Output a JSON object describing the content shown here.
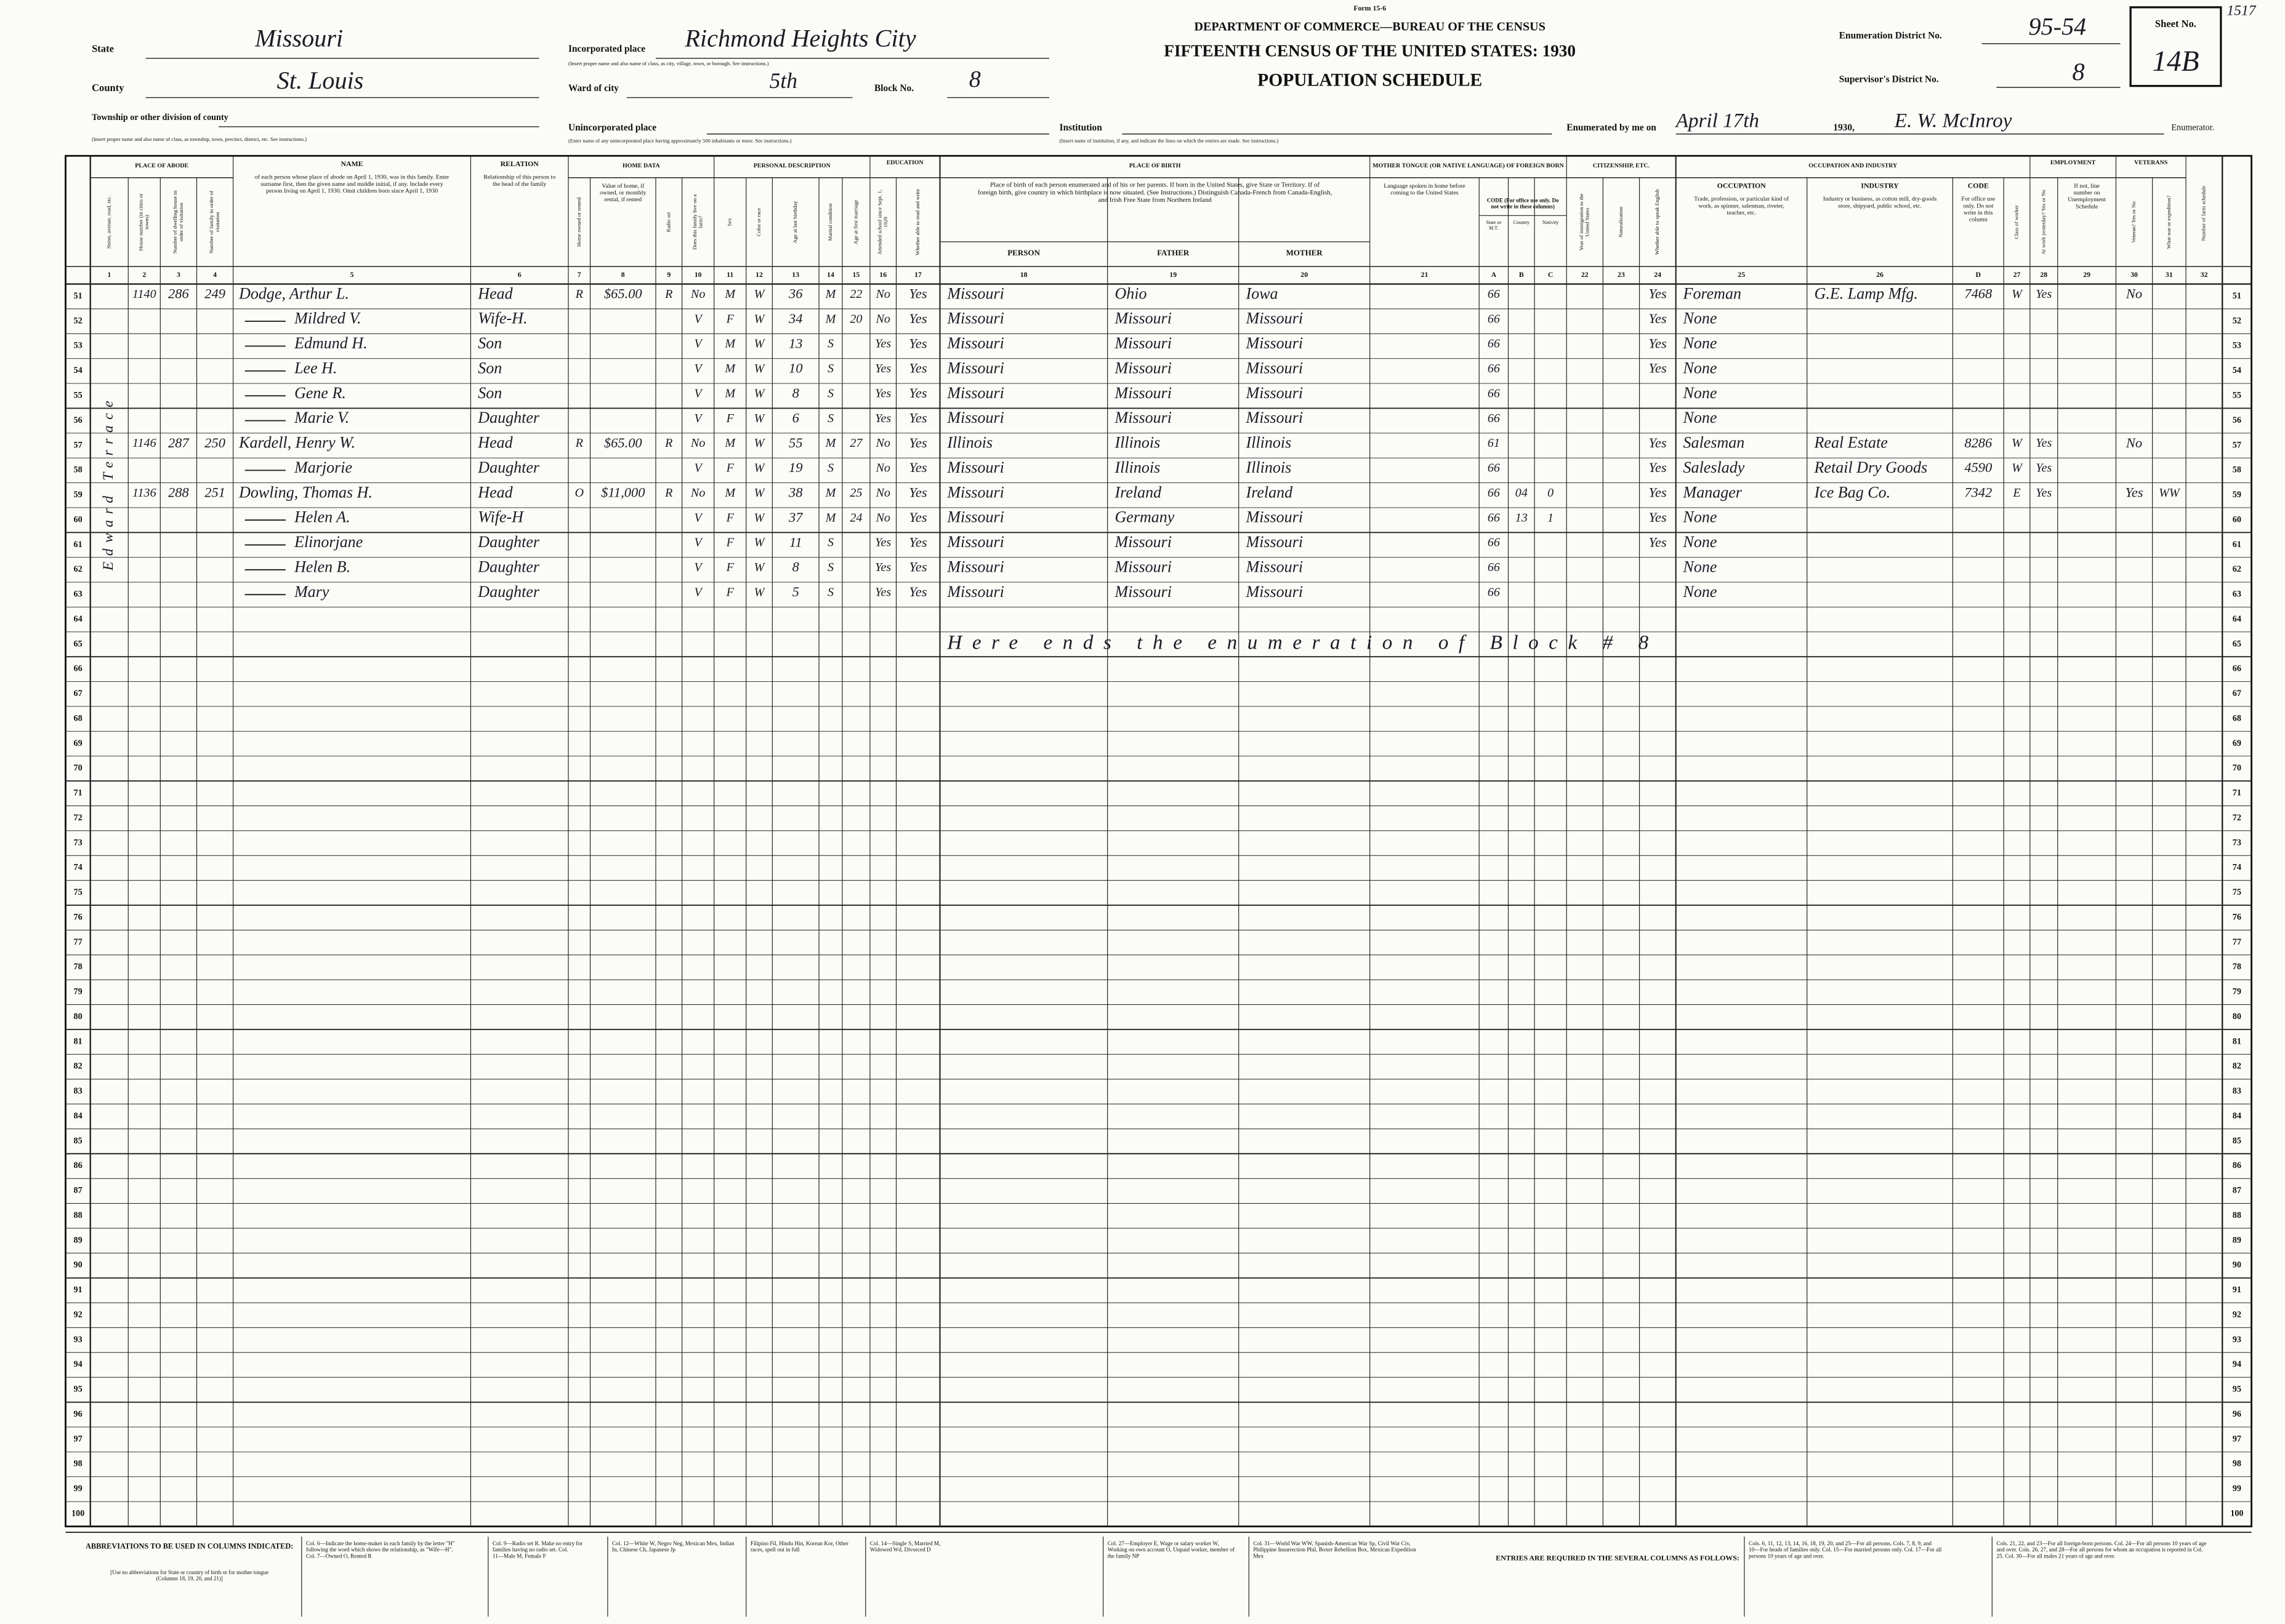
{
  "header": {
    "form": "Form 15-6",
    "dept": "DEPARTMENT OF COMMERCE—BUREAU OF THE CENSUS",
    "title": "FIFTEENTH CENSUS OF THE UNITED STATES: 1930",
    "subtitle": "POPULATION SCHEDULE",
    "state_label": "State",
    "state": "Missouri",
    "county_label": "County",
    "county": "St. Louis",
    "township_label": "Township or other division of county",
    "township_instruction": "(Insert proper name and also name of class, as township, town, precinct, district, etc. See instructions.)",
    "place_label": "Incorporated place",
    "place": "Richmond Heights City",
    "place_instruction": "(Insert proper name and also name of class, as city, village, town, or borough. See instructions.)",
    "ward_label": "Ward of city",
    "ward": "5th",
    "block_label": "Block No.",
    "block": "8",
    "unincorporated_label": "Unincorporated place",
    "unincorporated_instruction": "(Enter name of any unincorporated place having approximately 500 inhabitants or more. See instructions.)",
    "institution_label": "Institution",
    "institution_instruction": "(Insert name of institution, if any, and indicate the lines on which the entries are made. See instructions.)",
    "ed_label": "Enumeration District No.",
    "ed": "95-54",
    "sd_label": "Supervisor's District No.",
    "sd": "8",
    "sheet_label": "Sheet No.",
    "sheet": "14B",
    "enumerated_label": "Enumerated by me on",
    "date": "April 17th",
    "year": "1930,",
    "enumerator": "E. W. McInroy",
    "enumerator_label": "Enumerator.",
    "margin_note": "1517"
  },
  "groups": [
    "PLACE OF ABODE",
    "HOME DATA",
    "PERSONAL DESCRIPTION",
    "EDUCATION",
    "PLACE OF BIRTH",
    "MOTHER TONGUE (OR NATIVE LANGUAGE) OF FOREIGN BORN",
    "CITIZENSHIP, ETC.",
    "OCCUPATION AND INDUSTRY",
    "EMPLOYMENT",
    "VETERANS"
  ],
  "birth_note": "Place of birth of each person enumerated and of his or her parents. If born in the United States, give State or Territory. If of foreign birth, give country in which birthplace is now situated. (See Instructions.) Distinguish Canada-French from Canada-English, and Irish Free State from Northern Ireland",
  "code_note": "CODE (For office use only. Do not write in these columns)",
  "columns": [
    {
      "number": 1,
      "label": "Street, avenue, road, etc."
    },
    {
      "number": 2,
      "label": "House number (in cities or towns)"
    },
    {
      "number": 3,
      "label": "Number of dwelling house in order of visitation"
    },
    {
      "number": 4,
      "label": "Number of family in order of visitation"
    },
    {
      "number": 5,
      "title": "NAME",
      "label": "of each person whose place of abode on April 1, 1930, was in this family. Enter surname first, then the given name and middle initial, if any. Include every person living on April 1, 1930. Omit children born since April 1, 1930"
    },
    {
      "number": 6,
      "title": "RELATION",
      "label": "Relationship of this person to the head of the family"
    },
    {
      "number": 7,
      "label": "Home owned or rented"
    },
    {
      "number": 8,
      "label": "Value of home, if owned, or monthly rental, if rented"
    },
    {
      "number": 9,
      "label": "Radio set"
    },
    {
      "number": 10,
      "label": "Does this family live on a farm?"
    },
    {
      "number": 11,
      "label": "Sex"
    },
    {
      "number": 12,
      "label": "Color or race"
    },
    {
      "number": 13,
      "label": "Age at last birthday"
    },
    {
      "number": 14,
      "label": "Marital condition"
    },
    {
      "number": 15,
      "label": "Age at first marriage"
    },
    {
      "number": 16,
      "label": "Attended school since Sept. 1, 1929"
    },
    {
      "number": 17,
      "label": "Whether able to read and write"
    },
    {
      "number": 18,
      "label": "PERSON"
    },
    {
      "number": 19,
      "label": "FATHER"
    },
    {
      "number": 20,
      "label": "MOTHER"
    },
    {
      "number": 21,
      "label": "Language spoken in home before coming to the United States"
    },
    {
      "number": "A",
      "label": "State or M.T."
    },
    {
      "number": "B",
      "label": "Country"
    },
    {
      "number": "C",
      "label": "Nativity"
    },
    {
      "number": 22,
      "label": "Year of immigration to the United States"
    },
    {
      "number": 23,
      "label": "Naturalization"
    },
    {
      "number": 24,
      "label": "Whether able to speak English"
    },
    {
      "number": 25,
      "title": "OCCUPATION",
      "label": "Trade, profession, or particular kind of work, as spinner, salesman, riveter, teacher, etc."
    },
    {
      "number": 26,
      "title": "INDUSTRY",
      "label": "Industry or business, as cotton mill, dry-goods store, shipyard, public school, etc."
    },
    {
      "number": "D",
      "title": "CODE",
      "label": "For office use only. Do not write in this column"
    },
    {
      "number": 27,
      "label": "Class of worker"
    },
    {
      "number": 28,
      "label": "At work yesterday? Yes or No"
    },
    {
      "number": 29,
      "label": "If not, line number on Unemployment Schedule"
    },
    {
      "number": 30,
      "label": "Veteran? Yes or No"
    },
    {
      "number": 31,
      "label": "What war or expedition?"
    },
    {
      "number": 32,
      "label": "Number of farm schedule"
    }
  ],
  "street": "Edward Terrace",
  "lines": [
    51,
    52,
    53,
    54,
    55,
    56,
    57,
    58,
    59,
    60,
    61,
    62,
    63,
    64,
    65,
    66,
    67,
    68,
    69,
    70,
    71,
    72,
    73,
    74,
    75,
    76,
    77,
    78,
    79,
    80,
    81,
    82,
    83,
    84,
    85,
    86,
    87,
    88,
    89,
    90,
    91,
    92,
    93,
    94,
    95,
    96,
    97,
    98,
    99,
    100
  ],
  "entries": [
    [
      null,
      "1140",
      "286",
      "249",
      "Dodge, Arthur L.",
      "Head",
      "R",
      "$65.00",
      "R",
      "No",
      "M",
      "W",
      "36",
      "M",
      "22",
      "No",
      "Yes",
      "Missouri",
      "Ohio",
      "Iowa",
      null,
      "66",
      null,
      null,
      null,
      null,
      "Yes",
      "Foreman",
      "G.E. Lamp Mfg.",
      "7468",
      "W",
      "Yes",
      null,
      "No",
      null,
      null
    ],
    [
      null,
      null,
      null,
      null,
      "Mildred V.",
      "Wife-H.",
      null,
      null,
      null,
      "V",
      "F",
      "W",
      "34",
      "M",
      "20",
      "No",
      "Yes",
      "Missouri",
      "Missouri",
      "Missouri",
      null,
      "66",
      null,
      null,
      null,
      null,
      "Yes",
      "None",
      null,
      null,
      null,
      null,
      null,
      null,
      null,
      null
    ],
    [
      null,
      null,
      null,
      null,
      "Edmund H.",
      "Son",
      null,
      null,
      null,
      "V",
      "M",
      "W",
      "13",
      "S",
      null,
      "Yes",
      "Yes",
      "Missouri",
      "Missouri",
      "Missouri",
      null,
      "66",
      null,
      null,
      null,
      null,
      "Yes",
      "None",
      null,
      null,
      null,
      null,
      null,
      null,
      null,
      null
    ],
    [
      null,
      null,
      null,
      null,
      "Lee H.",
      "Son",
      null,
      null,
      null,
      "V",
      "M",
      "W",
      "10",
      "S",
      null,
      "Yes",
      "Yes",
      "Missouri",
      "Missouri",
      "Missouri",
      null,
      "66",
      null,
      null,
      null,
      null,
      "Yes",
      "None",
      null,
      null,
      null,
      null,
      null,
      null,
      null,
      null
    ],
    [
      null,
      null,
      null,
      null,
      "Gene R.",
      "Son",
      null,
      null,
      null,
      "V",
      "M",
      "W",
      "8",
      "S",
      null,
      "Yes",
      "Yes",
      "Missouri",
      "Missouri",
      "Missouri",
      null,
      "66",
      null,
      null,
      null,
      null,
      null,
      "None",
      null,
      null,
      null,
      null,
      null,
      null,
      null,
      null
    ],
    [
      null,
      null,
      null,
      null,
      "Marie V.",
      "Daughter",
      null,
      null,
      null,
      "V",
      "F",
      "W",
      "6",
      "S",
      null,
      "Yes",
      "Yes",
      "Missouri",
      "Missouri",
      "Missouri",
      null,
      "66",
      null,
      null,
      null,
      null,
      null,
      "None",
      null,
      null,
      null,
      null,
      null,
      null,
      null,
      null
    ],
    [
      null,
      "1146",
      "287",
      "250",
      "Kardell, Henry W.",
      "Head",
      "R",
      "$65.00",
      "R",
      "No",
      "M",
      "W",
      "55",
      "M",
      "27",
      "No",
      "Yes",
      "Illinois",
      "Illinois",
      "Illinois",
      null,
      "61",
      null,
      null,
      null,
      null,
      "Yes",
      "Salesman",
      "Real Estate",
      "8286",
      "W",
      "Yes",
      null,
      "No",
      null,
      null
    ],
    [
      null,
      null,
      null,
      null,
      "Marjorie",
      "Daughter",
      null,
      null,
      null,
      "V",
      "F",
      "W",
      "19",
      "S",
      null,
      "No",
      "Yes",
      "Missouri",
      "Illinois",
      "Illinois",
      null,
      "66",
      null,
      null,
      null,
      null,
      "Yes",
      "Saleslady",
      "Retail Dry Goods",
      "4590",
      "W",
      "Yes",
      null,
      null,
      null,
      null
    ],
    [
      null,
      "1136",
      "288",
      "251",
      "Dowling, Thomas H.",
      "Head",
      "O",
      "$11,000",
      "R",
      "No",
      "M",
      "W",
      "38",
      "M",
      "25",
      "No",
      "Yes",
      "Missouri",
      "Ireland",
      "Ireland",
      null,
      "66",
      "04",
      "0",
      null,
      null,
      "Yes",
      "Manager",
      "Ice Bag Co.",
      "7342",
      "E",
      "Yes",
      null,
      "Yes",
      "WW",
      null
    ],
    [
      null,
      null,
      null,
      null,
      "Helen A.",
      "Wife-H",
      null,
      null,
      null,
      "V",
      "F",
      "W",
      "37",
      "M",
      "24",
      "No",
      "Yes",
      "Missouri",
      "Germany",
      "Missouri",
      null,
      "66",
      "13",
      "1",
      null,
      null,
      "Yes",
      "None",
      null,
      null,
      null,
      null,
      null,
      null,
      null,
      null
    ],
    [
      null,
      null,
      null,
      null,
      "Elinorjane",
      "Daughter",
      null,
      null,
      null,
      "V",
      "F",
      "W",
      "11",
      "S",
      null,
      "Yes",
      "Yes",
      "Missouri",
      "Missouri",
      "Missouri",
      null,
      "66",
      null,
      null,
      null,
      null,
      "Yes",
      "None",
      null,
      null,
      null,
      null,
      null,
      null,
      null,
      null
    ],
    [
      null,
      null,
      null,
      null,
      "Helen B.",
      "Daughter",
      null,
      null,
      null,
      "V",
      "F",
      "W",
      "8",
      "S",
      null,
      "Yes",
      "Yes",
      "Missouri",
      "Missouri",
      "Missouri",
      null,
      "66",
      null,
      null,
      null,
      null,
      null,
      "None",
      null,
      null,
      null,
      null,
      null,
      null,
      null,
      null
    ],
    [
      null,
      null,
      null,
      null,
      "Mary",
      "Daughter",
      null,
      null,
      null,
      "V",
      "F",
      "W",
      "5",
      "S",
      null,
      "Yes",
      "Yes",
      "Missouri",
      "Missouri",
      "Missouri",
      null,
      "66",
      null,
      null,
      null,
      null,
      null,
      "None",
      null,
      null,
      null,
      null,
      null,
      null,
      null,
      null
    ]
  ],
  "note": "Here ends the enumeration of Block # 8",
  "footer": {
    "abbrev_title": "ABBREVIATIONS TO BE USED IN COLUMNS INDICATED:",
    "abbrev_subtitle": "[Use no abbreviations for State or country of birth or for mother tongue (Columns 18, 19, 20, and 21)]",
    "abbreviations": [
      "Col. 6—Indicate the home-maker in each family by the letter \"H\" following the word which shows the relationship, as \"Wife—H\". Col. 7—Owned O, Rented R",
      "Col. 9—Radio set R. Make no entry for families having no radio set. Col. 11—Male M, Female F",
      "Col. 12—White W, Negro Neg, Mexican Mex, Indian In, Chinese Ch, Japanese Jp",
      "Filipino Fil, Hindu Hin, Korean Kor, Other races, spell out in full",
      "Col. 14—Single S, Married M, Widowed Wd, Divorced D",
      "Col. 27—Employer E, Wage or salary worker W, Working on own account O, Unpaid worker, member of the family NP",
      "Col. 31—World War WW, Spanish-American War Sp, Civil War Civ, Philippine Insurrection Phil, Boxer Rebellion Box, Mexican Expedition Mex"
    ],
    "entries_title": "ENTRIES ARE REQUIRED IN THE SEVERAL COLUMNS AS FOLLOWS:",
    "requirements": [
      "Cols. 6, 11, 12, 13, 14, 16, 18, 19, 20, and 25—For all persons. Cols. 7, 8, 9, and 10—For heads of families only. Col. 15—For married persons only. Col. 17—For all persons 10 years of age and over.",
      "Cols. 21, 22, and 23—For all foreign-born persons. Col. 24—For all persons 10 years of age and over. Cols. 26, 27, and 28—For all persons for whom an occupation is reported in Col. 25. Col. 30—For all males 21 years of age and over."
    ]
  }
}
